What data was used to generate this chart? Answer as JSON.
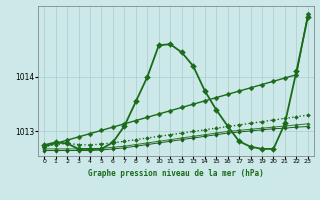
{
  "background_color": "#cce8e8",
  "grid_color": "#aacece",
  "title": "Graphe pression niveau de la mer (hPa)",
  "xlim": [
    -0.5,
    23.5
  ],
  "ylim": [
    1012.55,
    1015.3
  ],
  "yticks": [
    1013,
    1014
  ],
  "xticks": [
    0,
    1,
    2,
    3,
    4,
    5,
    6,
    7,
    8,
    9,
    10,
    11,
    12,
    13,
    14,
    15,
    16,
    17,
    18,
    19,
    20,
    21,
    22,
    23
  ],
  "lines": [
    {
      "x": [
        0,
        1,
        2,
        3,
        4,
        5,
        6,
        7,
        8,
        9,
        10,
        11,
        12,
        13,
        14,
        15,
        16,
        17,
        18,
        19,
        20,
        21,
        22,
        23
      ],
      "y": [
        1012.72,
        1012.76,
        1012.78,
        1012.76,
        1012.75,
        1012.77,
        1012.79,
        1012.82,
        1012.85,
        1012.88,
        1012.91,
        1012.94,
        1012.97,
        1013.0,
        1013.03,
        1013.06,
        1013.09,
        1013.12,
        1013.15,
        1013.18,
        1013.21,
        1013.24,
        1013.27,
        1013.3
      ],
      "color": "#1a6b1a",
      "linestyle": ":",
      "linewidth": 1.0,
      "marker": "D",
      "markersize": 2.0
    },
    {
      "x": [
        0,
        1,
        2,
        3,
        4,
        5,
        6,
        7,
        8,
        9,
        10,
        11,
        12,
        13,
        14,
        15,
        16,
        17,
        18,
        19,
        20,
        21,
        22,
        23
      ],
      "y": [
        1012.68,
        1012.68,
        1012.68,
        1012.68,
        1012.68,
        1012.69,
        1012.71,
        1012.73,
        1012.76,
        1012.79,
        1012.82,
        1012.85,
        1012.88,
        1012.91,
        1012.94,
        1012.97,
        1013.0,
        1013.02,
        1013.04,
        1013.06,
        1013.08,
        1013.1,
        1013.12,
        1013.14
      ],
      "color": "#2a7a2a",
      "linestyle": "-",
      "linewidth": 0.7,
      "marker": "D",
      "markersize": 1.8
    },
    {
      "x": [
        0,
        1,
        2,
        3,
        4,
        5,
        6,
        7,
        8,
        9,
        10,
        11,
        12,
        13,
        14,
        15,
        16,
        17,
        18,
        19,
        20,
        21,
        22,
        23
      ],
      "y": [
        1012.65,
        1012.65,
        1012.65,
        1012.65,
        1012.65,
        1012.66,
        1012.68,
        1012.7,
        1012.73,
        1012.76,
        1012.79,
        1012.82,
        1012.85,
        1012.88,
        1012.91,
        1012.94,
        1012.97,
        1012.99,
        1013.01,
        1013.03,
        1013.05,
        1013.06,
        1013.08,
        1013.09
      ],
      "color": "#1a5a1a",
      "linestyle": "-",
      "linewidth": 0.7,
      "marker": "D",
      "markersize": 1.8
    },
    {
      "x": [
        0,
        1,
        2,
        3,
        4,
        5,
        6,
        7,
        8,
        9,
        10,
        11,
        12,
        13,
        14,
        15,
        16,
        17,
        18,
        19,
        20,
        21,
        22,
        23
      ],
      "y": [
        1012.75,
        1012.8,
        1012.78,
        1012.68,
        1012.68,
        1012.68,
        1012.8,
        1013.1,
        1013.55,
        1014.0,
        1014.58,
        1014.6,
        1014.45,
        1014.2,
        1013.75,
        1013.4,
        1013.1,
        1012.82,
        1012.72,
        1012.68,
        1012.68,
        1013.15,
        1014.1,
        1015.1
      ],
      "color": "#1a6b1a",
      "linestyle": "-",
      "linewidth": 1.3,
      "marker": "D",
      "markersize": 3.0
    },
    {
      "x": [
        0,
        1,
        2,
        3,
        4,
        5,
        6,
        7,
        8,
        9,
        10,
        11,
        12,
        13,
        14,
        15,
        16,
        17,
        18,
        19,
        20,
        21,
        22,
        23
      ],
      "y": [
        1012.72,
        1012.78,
        1012.84,
        1012.9,
        1012.96,
        1013.02,
        1013.08,
        1013.14,
        1013.2,
        1013.26,
        1013.32,
        1013.38,
        1013.44,
        1013.5,
        1013.56,
        1013.62,
        1013.68,
        1013.74,
        1013.8,
        1013.86,
        1013.92,
        1013.98,
        1014.04,
        1015.15
      ],
      "color": "#1a6b1a",
      "linestyle": "-",
      "linewidth": 1.0,
      "marker": "D",
      "markersize": 2.5
    }
  ]
}
